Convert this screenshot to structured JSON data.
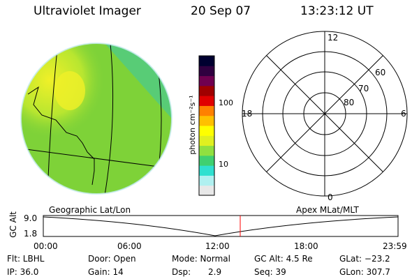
{
  "header": {
    "title": "Ultraviolet Imager",
    "date": "20 Sep 07",
    "time": "13:23:12 UT"
  },
  "colorbar": {
    "label": "photon cm⁻²s⁻¹",
    "tick_labels": [
      "100",
      "10"
    ],
    "colors": [
      "#e8e8e8",
      "#b0f0f0",
      "#30e0d0",
      "#40d070",
      "#90e040",
      "#e0f020",
      "#ffff00",
      "#ffc000",
      "#ff8000",
      "#e00000",
      "#a00000",
      "#700050",
      "#300040",
      "#000030"
    ]
  },
  "globe": {
    "label": "Geographic Lat/Lon",
    "colors": {
      "fill": "#7ed238",
      "bright": "#f0f028",
      "edge": "#40c8a0",
      "lines": "#000000"
    }
  },
  "polar": {
    "label": "Apex MLat/MLT",
    "mlt_labels": [
      "12",
      "18",
      "6",
      "0"
    ],
    "mlat_labels": [
      "60",
      "70",
      "80"
    ]
  },
  "altitude_plot": {
    "ylabel": "GC Alt",
    "ytick_labels": [
      "9.0",
      "1.8"
    ],
    "xtick_labels": [
      "00:00",
      "06:00",
      "12:00",
      "18:00",
      "23:59"
    ],
    "current_time_marker_color": "#ff0000"
  },
  "status": {
    "flt": "Flt: LBHL",
    "ip": "IP: 36.0",
    "door": "Door: Open",
    "gain": "Gain: 14",
    "mode": "Mode: Normal",
    "dsp": "Dsp:",
    "dsp_value": "2.9",
    "gc_alt": "GC Alt: 4.5 Re",
    "seq": "Seq: 39",
    "glat": "GLat: −23.2",
    "glon": "GLon: 307.7"
  }
}
